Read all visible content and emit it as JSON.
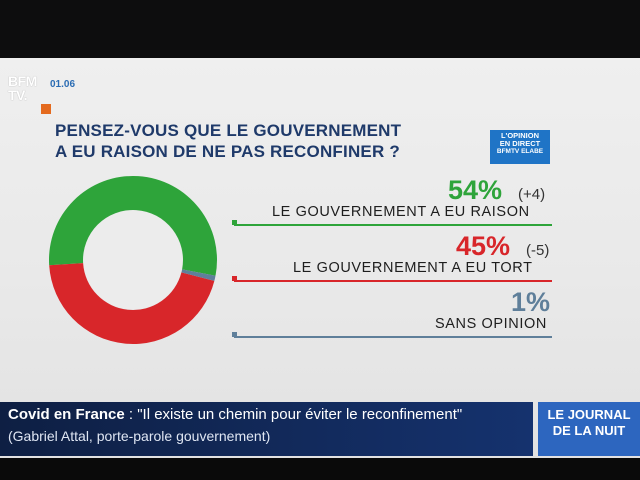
{
  "channel": {
    "logo_line1": "BFM",
    "logo_line2": "TV.",
    "time": "01.06"
  },
  "poll": {
    "question_line1": "PENSEZ-VOUS QUE LE GOUVERNEMENT",
    "question_line2": "A EU RAISON DE NE PAS RECONFINER ?",
    "badge": {
      "line1": "L'OPINION",
      "line2": "EN DIRECT",
      "line3": "BFMTV ELABE"
    }
  },
  "chart_data": {
    "type": "pie",
    "donut": true,
    "slices": [
      {
        "label": "LE GOUVERNEMENT A EU RAISON",
        "value": 54,
        "display": "54%",
        "change": "(+4)",
        "color": "#2ea43a"
      },
      {
        "label": "LE GOUVERNEMENT A EU TORT",
        "value": 45,
        "display": "45%",
        "change": "(-5)",
        "color": "#d8262a"
      },
      {
        "label": "SANS OPINION",
        "value": 1,
        "display": "1%",
        "change": "",
        "color": "#5f7f9a"
      }
    ]
  },
  "ticker": {
    "topic": "Covid en France",
    "separator": " : ",
    "quote": "\"Il existe un chemin pour éviter le reconfinement\"",
    "source": "(Gabriel Attal, porte-parole gouvernement)",
    "program_line1": "LE JOURNAL",
    "program_line2": "DE LA NUIT"
  }
}
